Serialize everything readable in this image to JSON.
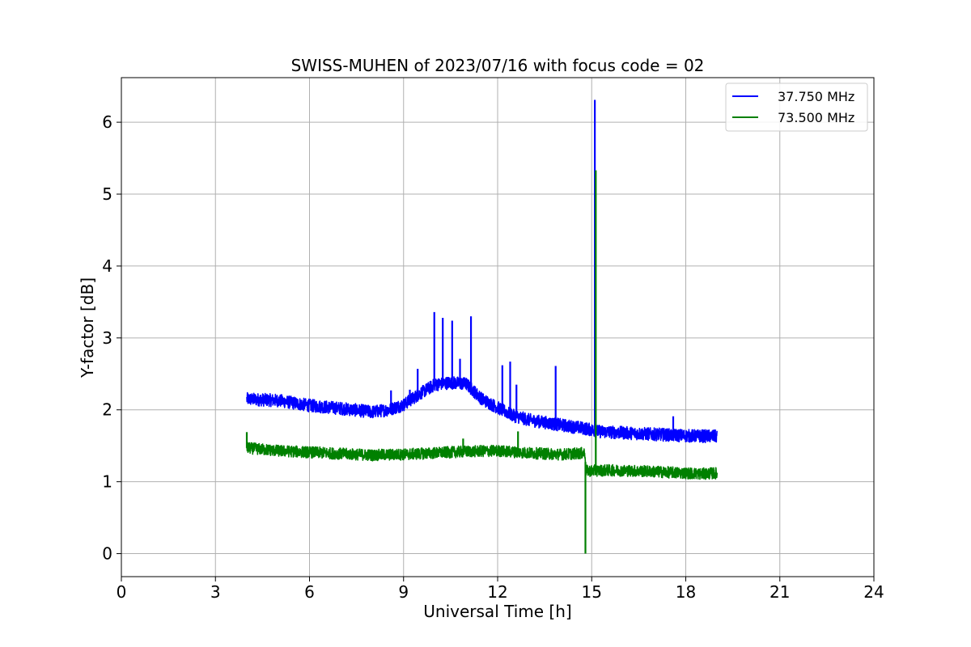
{
  "chart_data": {
    "type": "line",
    "title": "SWISS-MUHEN of 2023/07/16 with focus code = 02",
    "xlabel": "Universal Time [h]",
    "ylabel": "Y-factor [dB]",
    "xlim": [
      0,
      24
    ],
    "ylim": [
      -0.32,
      6.62
    ],
    "xticks": [
      0,
      3,
      6,
      9,
      12,
      15,
      18,
      21,
      24
    ],
    "yticks": [
      0,
      1,
      2,
      3,
      4,
      5,
      6
    ],
    "grid": true,
    "legend_position": "top-right",
    "x_range_data": [
      4.0,
      19.0
    ],
    "series": [
      {
        "name": "37.750 MHz",
        "color": "#0000ff",
        "x": [
          4.0,
          5.0,
          6.0,
          7.0,
          8.0,
          8.5,
          9.0,
          9.5,
          10.0,
          10.5,
          11.0,
          11.5,
          12.0,
          12.5,
          13.0,
          14.0,
          14.8,
          15.2,
          16.0,
          17.0,
          18.0,
          19.0
        ],
        "values": [
          2.15,
          2.13,
          2.06,
          2.02,
          1.97,
          2.0,
          2.07,
          2.22,
          2.35,
          2.38,
          2.36,
          2.15,
          2.03,
          1.92,
          1.86,
          1.79,
          1.74,
          1.7,
          1.68,
          1.66,
          1.64,
          1.63
        ],
        "noise_band": 0.09,
        "spikes": [
          {
            "x": 8.6,
            "y": 2.27
          },
          {
            "x": 9.2,
            "y": 2.28
          },
          {
            "x": 9.45,
            "y": 2.57
          },
          {
            "x": 9.98,
            "y": 3.36
          },
          {
            "x": 10.25,
            "y": 3.28
          },
          {
            "x": 10.55,
            "y": 3.24
          },
          {
            "x": 10.8,
            "y": 2.71
          },
          {
            "x": 11.15,
            "y": 3.3
          },
          {
            "x": 12.15,
            "y": 2.62
          },
          {
            "x": 12.4,
            "y": 2.67
          },
          {
            "x": 12.6,
            "y": 2.35
          },
          {
            "x": 13.85,
            "y": 2.61
          },
          {
            "x": 15.1,
            "y": 6.31
          },
          {
            "x": 17.6,
            "y": 1.91
          }
        ]
      },
      {
        "name": "73.500 MHz",
        "color": "#008000",
        "x": [
          4.0,
          5.0,
          6.0,
          7.0,
          8.0,
          9.0,
          10.0,
          11.0,
          12.0,
          13.0,
          14.0,
          14.79,
          14.81,
          15.5,
          16.5,
          17.5,
          18.5,
          19.0
        ],
        "values": [
          1.47,
          1.43,
          1.41,
          1.39,
          1.37,
          1.38,
          1.4,
          1.42,
          1.43,
          1.4,
          1.38,
          1.4,
          1.15,
          1.16,
          1.15,
          1.13,
          1.11,
          1.12
        ],
        "noise_band": 0.08,
        "spikes": [
          {
            "x": 4.0,
            "y": 1.69
          },
          {
            "x": 10.9,
            "y": 1.6
          },
          {
            "x": 12.65,
            "y": 1.7
          },
          {
            "x": 14.8,
            "y": 0.0
          },
          {
            "x": 15.13,
            "y": 5.33
          }
        ]
      }
    ]
  }
}
